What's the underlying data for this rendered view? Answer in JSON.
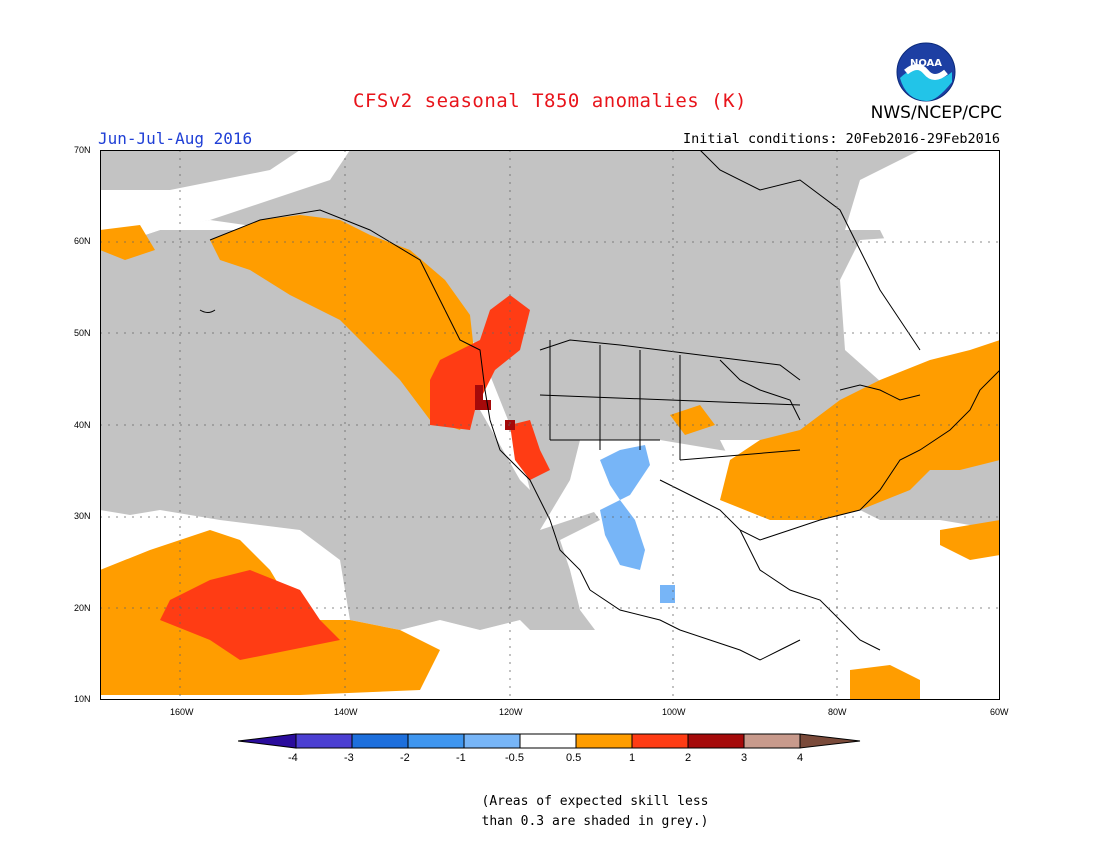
{
  "title": "CFSv2 seasonal T850 anomalies (K)",
  "season": "Jun-Jul-Aug 2016",
  "initial_conditions": "Initial conditions: 20Feb2016-29Feb2016",
  "agency": "NWS/NCEP/CPC",
  "logo_text": "NOAA",
  "map": {
    "lat_labels": [
      "70N",
      "60N",
      "50N",
      "40N",
      "30N",
      "20N",
      "10N"
    ],
    "lon_labels": [
      "160W",
      "140W",
      "120W",
      "100W",
      "80W",
      "60W"
    ],
    "colors": {
      "grey": "#c3c3c3",
      "orange": "#ff9d00",
      "red_orange": "#ff3c14",
      "dark_red": "#a50a0a",
      "light_blue": "#77b5f7",
      "white": "#ffffff"
    }
  },
  "legend": {
    "labels": [
      "-4",
      "-3",
      "-2",
      "-1",
      "-0.5",
      "0.5",
      "1",
      "2",
      "3",
      "4"
    ],
    "colors": [
      "#2a0c9c",
      "#4b3fd2",
      "#1d6fdc",
      "#3f96ef",
      "#77b5f7",
      "#ffffff",
      "#ff9d00",
      "#ff3c14",
      "#a50a0a",
      "#c89a8c",
      "#7a4a3a"
    ]
  },
  "note": {
    "line1": "(Areas of expected skill less",
    "line2": "than 0.3 are shaded in grey.)"
  }
}
